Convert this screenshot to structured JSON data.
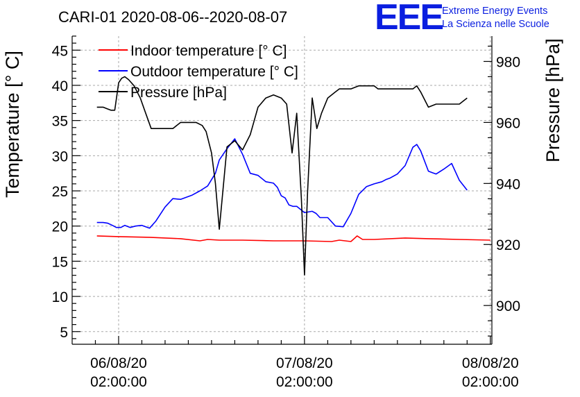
{
  "chart_data": {
    "type": "line",
    "title": "CARI-01 2020-08-06--2020-08-07",
    "logo": {
      "mark": "EEE",
      "line1": "Extreme Energy Events",
      "line2": "La Scienza nelle Scuole",
      "color": "#0a1ee0"
    },
    "x_axis": {
      "ticks": [
        {
          "t": 0,
          "line1": "06/08/20",
          "line2": "02:00:00"
        },
        {
          "t": 24,
          "line1": "07/08/20",
          "line2": "02:00:00"
        },
        {
          "t": 48,
          "line1": "08/08/20",
          "line2": "02:00:00"
        }
      ],
      "range": [
        -6,
        48.2
      ],
      "unit": "hours since 06/08/20 02:00:00"
    },
    "y_left": {
      "label": "Temperature [° C]",
      "range": [
        3.2,
        47
      ],
      "ticks": [
        "5",
        "10",
        "15",
        "20",
        "25",
        "30",
        "35",
        "40",
        "45"
      ]
    },
    "y_right": {
      "label": "Pressure [hPa]",
      "range": [
        887.3,
        988.3
      ],
      "ticks": [
        "900",
        "920",
        "940",
        "960",
        "980"
      ]
    },
    "series": [
      {
        "name": "Indoor temperature [° C]",
        "color": "#ff0000",
        "axis": "left",
        "x": [
          -2.8,
          0,
          4,
          8,
          10.5,
          11.5,
          13,
          16,
          20,
          24,
          27.5,
          28.5,
          30,
          30.8,
          31.5,
          33,
          37,
          40,
          44,
          48
        ],
        "y": [
          18.6,
          18.5,
          18.4,
          18.2,
          17.9,
          18.1,
          18.0,
          18.0,
          17.9,
          17.9,
          17.8,
          18.0,
          17.8,
          18.6,
          18.1,
          18.1,
          18.3,
          18.2,
          18.1,
          18.0
        ]
      },
      {
        "name": "Outdoor temperature [° C]",
        "color": "#0000ff",
        "axis": "left",
        "x": [
          -2.8,
          -2,
          -1.4,
          -0.8,
          -0.3,
          0.3,
          0.8,
          1.5,
          2.2,
          3,
          3.5,
          4,
          4.8,
          6,
          7,
          8,
          9.5,
          10.5,
          11.5,
          12.5,
          13,
          14,
          15,
          16,
          17,
          18,
          19,
          20,
          20.5,
          21,
          21.5,
          22,
          22.5,
          23,
          24,
          25,
          25.5,
          26,
          27,
          28,
          29,
          30,
          31,
          32,
          33,
          34,
          34.5,
          35,
          36,
          37,
          38,
          38.5,
          39,
          40,
          40.5,
          41,
          42,
          43,
          44,
          45
        ],
        "y": [
          20.5,
          20.5,
          20.4,
          20.1,
          19.8,
          19.8,
          20.1,
          19.8,
          20.0,
          20.1,
          19.9,
          19.7,
          20.7,
          22.7,
          23.9,
          23.8,
          24.4,
          25.0,
          25.7,
          27.5,
          29.4,
          31.0,
          32.4,
          30.2,
          27.5,
          27.2,
          26.3,
          26.1,
          25.5,
          24.3,
          24.0,
          23.0,
          22.8,
          22.8,
          21.9,
          22.1,
          21.8,
          21.2,
          21.2,
          20.0,
          19.9,
          21.8,
          24.5,
          25.6,
          26.0,
          26.3,
          26.6,
          26.8,
          27.4,
          28.6,
          31.2,
          31.6,
          30.7,
          27.8,
          27.6,
          27.4,
          28.1,
          28.9,
          26.5,
          25.1
        ]
      },
      {
        "name": "Pressure [hPa]",
        "color": "#000000",
        "axis": "right",
        "x": [
          -2.8,
          -2,
          -1.5,
          -1,
          -0.5,
          0,
          0.4,
          0.8,
          1.3,
          2,
          2.8,
          3.5,
          4.2,
          5,
          6,
          7,
          8,
          9,
          10,
          10.8,
          11.3,
          12,
          12.5,
          13,
          14,
          15,
          16,
          17,
          18,
          19,
          20,
          21,
          21.7,
          22.4,
          23,
          23.6,
          24,
          24.4,
          25,
          25.6,
          26.2,
          27,
          28,
          28.5,
          29,
          30,
          31,
          32,
          33,
          33.5,
          34,
          34.5,
          35,
          36,
          37,
          38,
          38.5,
          39,
          40,
          41,
          42,
          43,
          44,
          45
        ],
        "y": [
          965,
          965,
          964.5,
          964,
          964,
          973,
          974.5,
          975,
          974,
          972,
          968,
          963,
          958,
          958,
          958,
          958,
          960,
          960,
          960,
          959,
          957,
          950,
          940,
          925,
          952,
          954,
          951,
          956,
          965,
          968,
          969,
          968,
          966,
          950,
          963,
          935,
          910,
          937,
          968,
          958,
          963,
          968,
          970,
          971,
          971,
          971,
          972,
          972,
          972,
          971,
          971,
          971,
          971,
          971,
          971,
          971,
          972,
          970,
          965,
          966,
          966,
          966,
          966,
          968
        ]
      }
    ]
  }
}
